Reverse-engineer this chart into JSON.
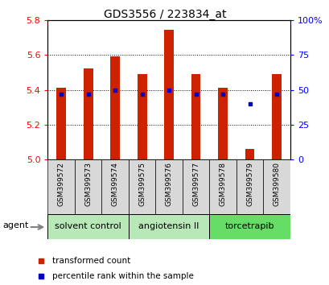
{
  "title": "GDS3556 / 223834_at",
  "samples": [
    "GSM399572",
    "GSM399573",
    "GSM399574",
    "GSM399575",
    "GSM399576",
    "GSM399577",
    "GSM399578",
    "GSM399579",
    "GSM399580"
  ],
  "red_values": [
    5.41,
    5.52,
    5.59,
    5.49,
    5.745,
    5.49,
    5.41,
    5.06,
    5.49
  ],
  "blue_values": [
    47,
    47,
    50,
    47,
    50,
    47,
    47,
    40,
    47
  ],
  "bar_bottom": 5.0,
  "ylim_left": [
    5.0,
    5.8
  ],
  "ylim_right": [
    0,
    100
  ],
  "yticks_left": [
    5.0,
    5.2,
    5.4,
    5.6,
    5.8
  ],
  "yticks_right": [
    0,
    25,
    50,
    75,
    100
  ],
  "ytick_labels_right": [
    "0",
    "25",
    "50",
    "75",
    "100%"
  ],
  "groups": [
    {
      "label": "solvent control",
      "start": 0,
      "end": 3,
      "color": "#b8e8b8"
    },
    {
      "label": "angiotensin II",
      "start": 3,
      "end": 6,
      "color": "#b8e8b8"
    },
    {
      "label": "torcetrapib",
      "start": 6,
      "end": 9,
      "color": "#66dd66"
    }
  ],
  "bar_color": "#cc2200",
  "blue_color": "#0000cc",
  "agent_label": "agent",
  "legend_red": "transformed count",
  "legend_blue": "percentile rank within the sample",
  "background_color": "#ffffff",
  "plot_bg": "#ffffff",
  "cell_bg": "#d8d8d8"
}
